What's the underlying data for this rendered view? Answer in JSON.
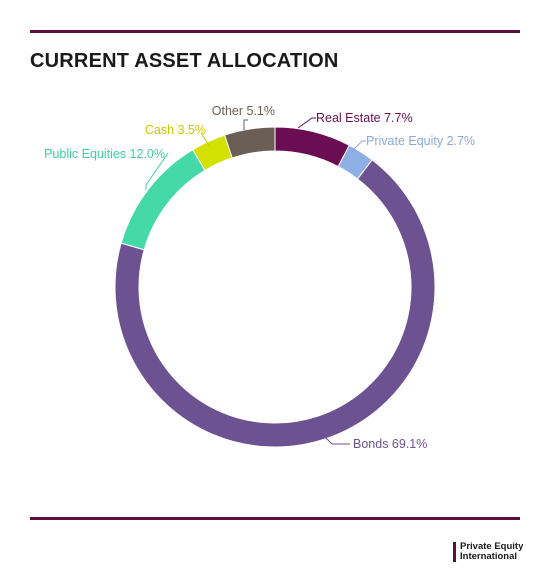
{
  "header": {
    "title": "CURRENT ASSET ALLOCATION"
  },
  "brand": {
    "line1": "Private Equity",
    "line2": "International",
    "color": "#5b0f3f"
  },
  "chart_data": {
    "type": "pie",
    "style": "donut",
    "title": "CURRENT ASSET ALLOCATION",
    "slices": [
      {
        "label": "Real Estate 7.7%",
        "name": "Real Estate",
        "value": 7.7,
        "color": "#6b0d52",
        "label_color": "#6b0d52"
      },
      {
        "label": "Private Equity 2.7%",
        "name": "Private Equity",
        "value": 2.7,
        "color": "#8eaee6",
        "label_color": "#8aa8dd"
      },
      {
        "label": "Bonds 69.1%",
        "name": "Bonds",
        "value": 69.1,
        "color": "#6d5291",
        "label_color": "#6d5291"
      },
      {
        "label": "Public Equities 12.0%",
        "name": "Public Equities",
        "value": 12.0,
        "color": "#45d9a8",
        "label_color": "#3fcf9e"
      },
      {
        "label": "Cash 3.5%",
        "name": "Cash",
        "value": 3.5,
        "color": "#d4e000",
        "label_color": "#c8c800"
      },
      {
        "label": "Other 5.1%",
        "name": "Other",
        "value": 5.1,
        "color": "#6b5e55",
        "label_color": "#6b5e55"
      }
    ]
  }
}
